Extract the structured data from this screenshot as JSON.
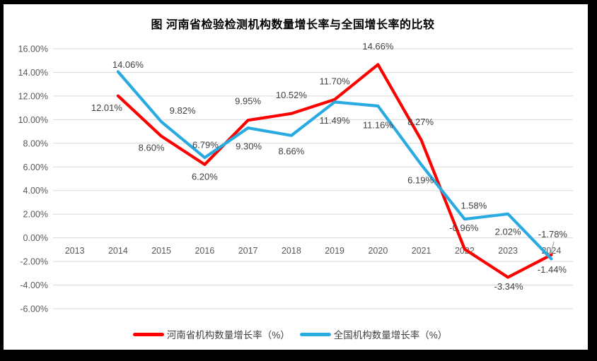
{
  "title": "图  河南省检验检测机构数量增长率与全国增长率的比较",
  "colors": {
    "henan_series": "#FF0000",
    "national_series": "#29ABE2",
    "gridline": "#D9D9D9",
    "axis_text": "#595959",
    "data_label_text": "#404040",
    "leader_line": "#A6A6A6",
    "frame": "#000000",
    "background": "#FFFFFF"
  },
  "chart_data": {
    "type": "line",
    "title": "图  河南省检验检测机构数量增长率与全国增长率的比较",
    "categories": [
      "2013",
      "2014",
      "2015",
      "2016",
      "2017",
      "2018",
      "2019",
      "2020",
      "2021",
      "2022",
      "2023",
      "2024"
    ],
    "series": [
      {
        "name": "河南省机构数量增长率（%）",
        "color": "#FF0000",
        "values": [
          null,
          12.01,
          8.6,
          6.2,
          9.95,
          10.52,
          11.7,
          14.66,
          8.27,
          -0.96,
          -3.34,
          -1.44
        ],
        "labels": [
          null,
          "12.01%",
          "8.60%",
          "6.20%",
          "9.95%",
          "10.52%",
          "11.70%",
          "14.66%",
          "8.27%",
          "-0.96%",
          "-3.34%",
          "-1.44%"
        ]
      },
      {
        "name": "全国机构数量增长率（%）",
        "color": "#29ABE2",
        "values": [
          null,
          14.06,
          9.82,
          6.79,
          9.3,
          8.66,
          11.49,
          11.16,
          6.19,
          1.58,
          2.02,
          -1.78
        ],
        "labels": [
          null,
          "14.06%",
          "9.82%",
          "6.79%",
          "9.30%",
          "8.66%",
          "11.49%",
          "11.16%",
          "6.19%",
          "1.58%",
          "2.02%",
          "-1.78%"
        ]
      }
    ],
    "y_ticks": [
      "16.00%",
      "14.00%",
      "12.00%",
      "10.00%",
      "8.00%",
      "6.00%",
      "4.00%",
      "2.00%",
      "0.00%",
      "-2.00%",
      "-4.00%",
      "-6.00%"
    ],
    "y_tick_values": [
      16,
      14,
      12,
      10,
      8,
      6,
      4,
      2,
      0,
      -2,
      -4,
      -6
    ],
    "ylim": [
      -6,
      16
    ],
    "grid": true,
    "legend_position": "bottom"
  }
}
